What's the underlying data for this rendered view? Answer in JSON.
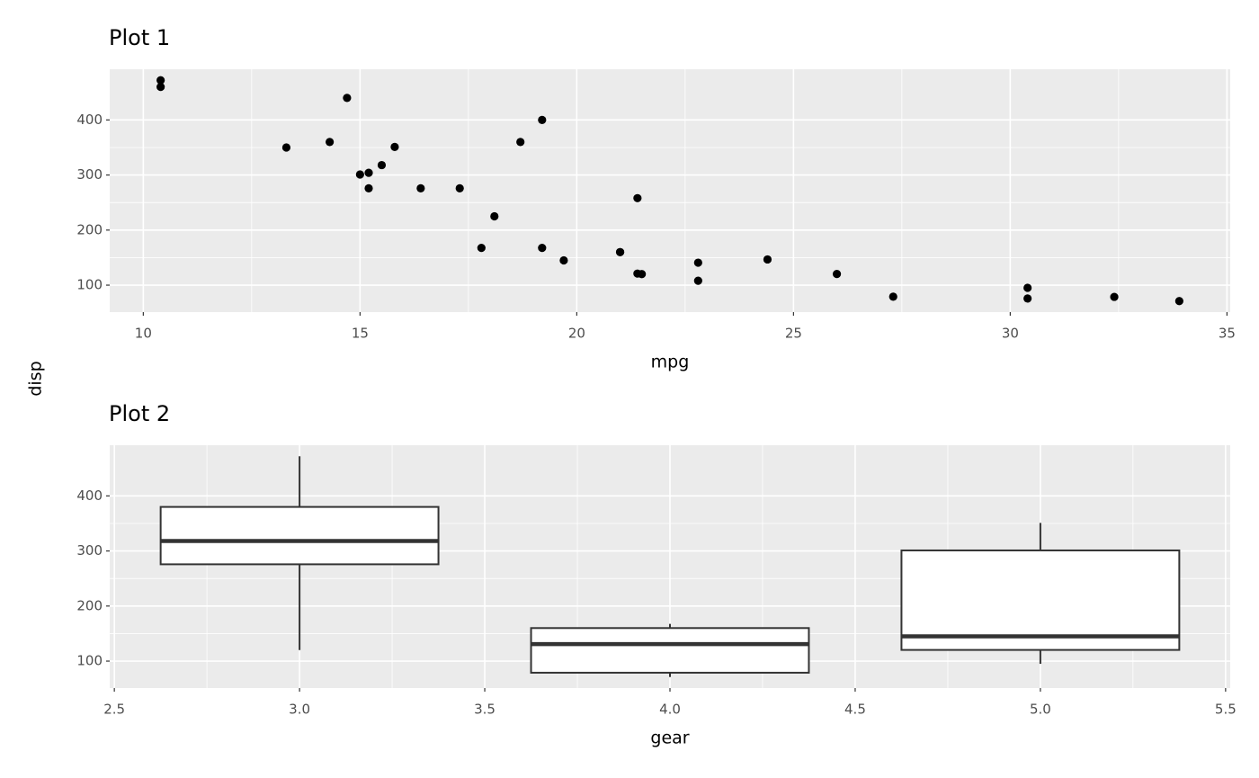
{
  "ylabel": "disp",
  "chart_data": [
    {
      "type": "scatter",
      "title": "Plot 1",
      "xlabel": "mpg",
      "color": "#000000",
      "grid": true,
      "x": [
        21.0,
        21.0,
        22.8,
        21.4,
        18.7,
        18.1,
        14.3,
        24.4,
        22.8,
        19.2,
        17.8,
        16.4,
        17.3,
        15.2,
        10.4,
        10.4,
        14.7,
        32.4,
        30.4,
        33.9,
        21.5,
        15.5,
        15.2,
        13.3,
        19.2,
        27.3,
        26.0,
        30.4,
        15.8,
        19.7,
        15.0,
        21.4
      ],
      "values": [
        160,
        160,
        108,
        258,
        360,
        225,
        360,
        146.7,
        140.8,
        167.6,
        167.6,
        275.8,
        275.8,
        275.8,
        472,
        460,
        440,
        78.7,
        75.7,
        71.1,
        120.1,
        318,
        304,
        350,
        400,
        79,
        120.3,
        95.1,
        351,
        145,
        301,
        121
      ],
      "xlim": [
        9.225,
        35.075
      ],
      "xticks": [
        10,
        15,
        20,
        25,
        30,
        35
      ],
      "ylim": [
        51.05,
        492.05
      ],
      "yticks": [
        100,
        200,
        300,
        400
      ]
    },
    {
      "type": "box",
      "title": "Plot 2",
      "xlabel": "gear",
      "color": "#333333",
      "grid": true,
      "x": [
        3,
        4,
        5
      ],
      "boxes": [
        {
          "min": 120.1,
          "q1": 275.8,
          "median": 318,
          "q3": 380,
          "max": 472
        },
        {
          "min": 71.1,
          "q1": 78.925,
          "median": 130.9,
          "q3": 160,
          "max": 167.6
        },
        {
          "min": 95.1,
          "q1": 120.3,
          "median": 145,
          "q3": 301,
          "max": 351
        }
      ],
      "box_width": 0.75,
      "xlim": [
        2.4875,
        5.5125
      ],
      "xticks": [
        2.5,
        {
          "value": 3,
          "label": "3.0"
        },
        3.5,
        {
          "value": 4,
          "label": "4.0"
        },
        4.5,
        {
          "value": 5,
          "label": "5.0"
        },
        5.5
      ],
      "ylim": [
        51.05,
        492.05
      ],
      "yticks": [
        100,
        200,
        300,
        400
      ]
    }
  ]
}
